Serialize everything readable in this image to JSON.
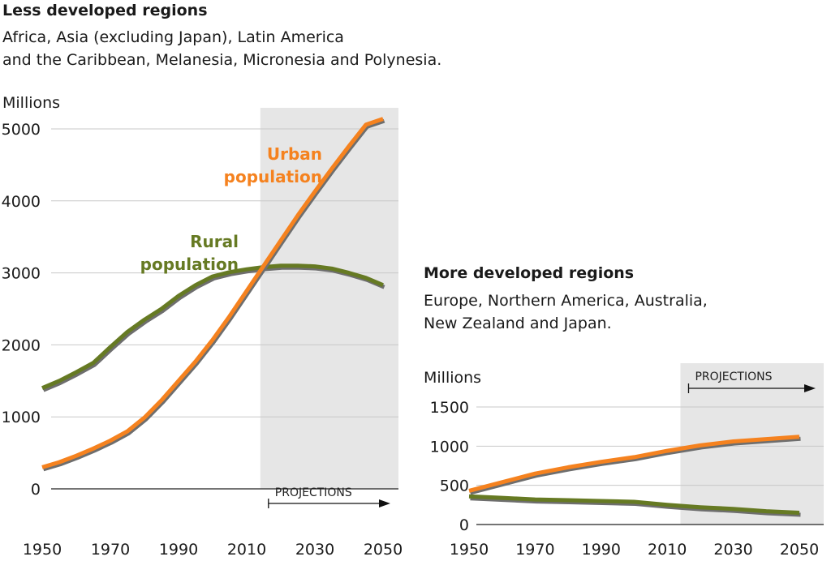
{
  "colors": {
    "urban": "#f5821f",
    "rural": "#667a23",
    "shadow": "#6e6e6e",
    "projection_bg": "#e6e6e6",
    "grid": "#c8c8c8"
  },
  "chart_data": [
    {
      "type": "line",
      "title": "Less developed regions",
      "subtitle_lines": [
        "Africa, Asia (excluding Japan), Latin America",
        "and the Caribbean, Melanesia, Micronesia and Polynesia."
      ],
      "ylabel": "Millions",
      "ylim": [
        0,
        5000
      ],
      "yticks": [
        0,
        1000,
        2000,
        3000,
        4000,
        5000
      ],
      "xticks": [
        1950,
        1970,
        1990,
        2010,
        2030,
        2050
      ],
      "xlim": [
        1950,
        2050
      ],
      "projection_start": 2014,
      "projection_label": "PROJECTIONS",
      "x": [
        1950,
        1955,
        1960,
        1965,
        1970,
        1975,
        1980,
        1985,
        1990,
        1995,
        2000,
        2005,
        2010,
        2015,
        2020,
        2025,
        2030,
        2035,
        2040,
        2045,
        2050
      ],
      "series": [
        {
          "name": "Urban population",
          "label_lines": [
            "Urban",
            "population"
          ],
          "color_key": "urban",
          "values": [
            300,
            370,
            460,
            560,
            670,
            800,
            990,
            1230,
            1500,
            1770,
            2070,
            2400,
            2750,
            3100,
            3450,
            3800,
            4130,
            4450,
            4760,
            5060,
            5140
          ]
        },
        {
          "name": "Rural population",
          "label_lines": [
            "Rural",
            "population"
          ],
          "color_key": "rural",
          "values": [
            1400,
            1500,
            1620,
            1750,
            1970,
            2180,
            2350,
            2500,
            2680,
            2830,
            2950,
            3010,
            3050,
            3080,
            3100,
            3100,
            3090,
            3060,
            3000,
            2930,
            2830
          ]
        }
      ]
    },
    {
      "type": "line",
      "title": "More developed regions",
      "subtitle_lines": [
        "Europe, Northern America, Australia,",
        "New Zealand and Japan."
      ],
      "ylabel": "Millions",
      "ylim": [
        0,
        1500
      ],
      "yticks": [
        0,
        500,
        1000,
        1500
      ],
      "xticks": [
        1950,
        1970,
        1990,
        2010,
        2030,
        2050
      ],
      "xlim": [
        1950,
        2050
      ],
      "projection_start": 2014,
      "projection_label": "PROJECTIONS",
      "x": [
        1950,
        1960,
        1970,
        1980,
        1990,
        2000,
        2010,
        2020,
        2030,
        2040,
        2050
      ],
      "series": [
        {
          "name": "Urban population",
          "color_key": "urban",
          "values": [
            430,
            540,
            650,
            730,
            800,
            860,
            940,
            1010,
            1060,
            1090,
            1120
          ]
        },
        {
          "name": "Rural population",
          "color_key": "rural",
          "values": [
            360,
            340,
            320,
            310,
            300,
            290,
            250,
            220,
            200,
            170,
            150
          ]
        }
      ]
    }
  ]
}
